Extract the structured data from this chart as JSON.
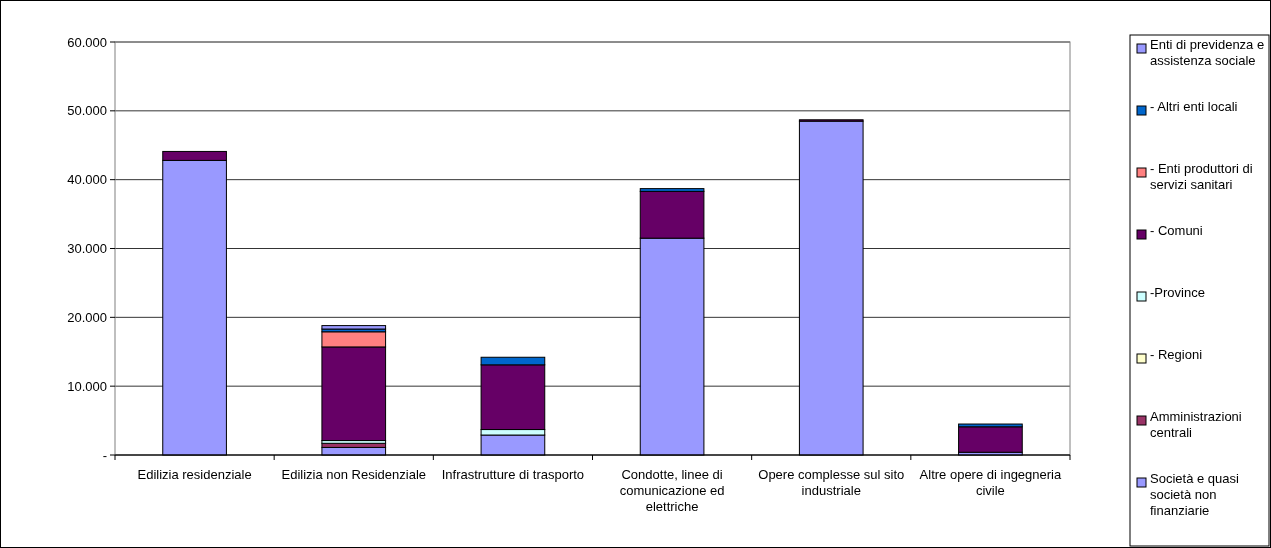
{
  "chart_data": {
    "type": "bar",
    "stacked": true,
    "categories": [
      "Edilizia residenziale",
      "Edilizia non Residenziale",
      "Infrastrutture di trasporto",
      "Condotte, linee di comunicazione ed elettriche",
      "Opere complesse sul sito industriale",
      "Altre opere di ingegneria civile"
    ],
    "series": [
      {
        "name": "Società e quasi società non finanziarie",
        "color": "#9999ff",
        "values": [
          42800,
          1100,
          2900,
          31500,
          48500,
          400
        ]
      },
      {
        "name": "Amministrazioni centrali",
        "color": "#993366",
        "values": [
          0,
          600,
          0,
          null,
          0,
          0
        ]
      },
      {
        "name": "- Regioni",
        "color": "#ffffcc",
        "values": [
          0,
          null,
          0,
          0,
          0,
          0
        ]
      },
      {
        "name": "-Province",
        "color": "#ccffff",
        "values": [
          0,
          400,
          800,
          0,
          0,
          0
        ]
      },
      {
        "name": "- Comuni",
        "color": "#660066",
        "values": [
          1300,
          13600,
          9400,
          6800,
          200,
          3700
        ]
      },
      {
        "name": "- Enti produttori di servizi sanitari",
        "color": "#ff8080",
        "values": [
          0,
          2200,
          0,
          0,
          0,
          0
        ]
      },
      {
        "name": "- Altri enti locali",
        "color": "#0066cc",
        "values": [
          0,
          400,
          1100,
          400,
          0,
          400
        ]
      },
      {
        "name": "Enti di previdenza e assistenza sociale",
        "color": "#9999ff",
        "values": [
          0,
          500,
          0,
          0,
          0,
          0
        ]
      }
    ],
    "ylim": [
      0,
      60000
    ],
    "yticks": [
      {
        "value": 0,
        "label": "-"
      },
      {
        "value": 10000,
        "label": "10.000"
      },
      {
        "value": 20000,
        "label": "20.000"
      },
      {
        "value": 30000,
        "label": "30.000"
      },
      {
        "value": 40000,
        "label": "40.000"
      },
      {
        "value": 50000,
        "label": "50.000"
      },
      {
        "value": 60000,
        "label": "60.000"
      }
    ],
    "grid": "y",
    "legend": "right"
  }
}
